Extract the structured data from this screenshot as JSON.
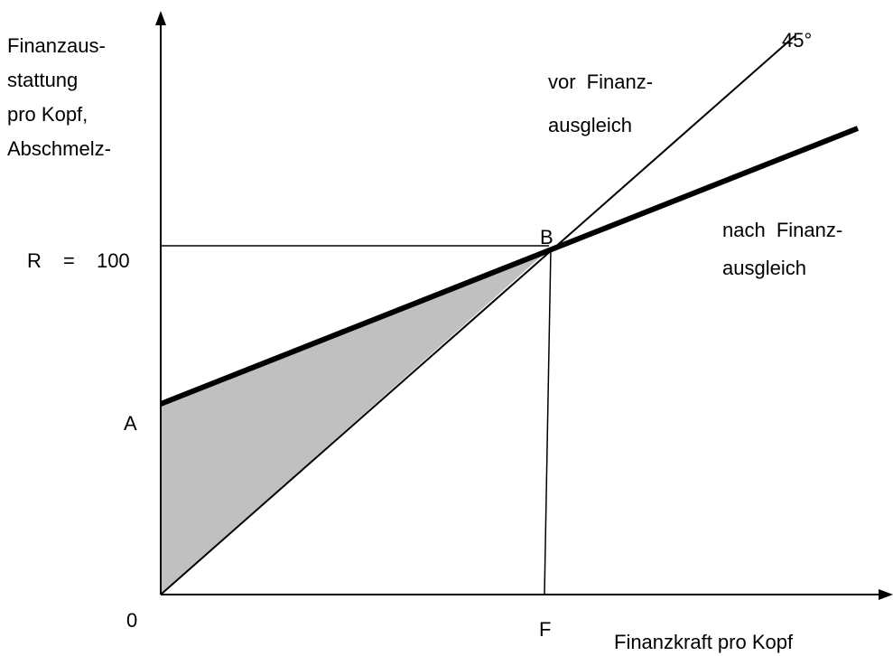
{
  "y_axis_label": [
    "Finanzaus-",
    "stattung",
    "pro Kopf,",
    "Abschmelz-"
  ],
  "x_axis_label": "Finanzkraft pro Kopf",
  "reference_label": "R = 100",
  "points": {
    "origin": "0",
    "a": "A",
    "b": "B",
    "f": "F"
  },
  "angle_label": "45°",
  "line_labels": {
    "before": [
      "vor Finanz-",
      "ausgleich"
    ],
    "after": [
      "nach Finanz-",
      "ausgleich"
    ]
  }
}
